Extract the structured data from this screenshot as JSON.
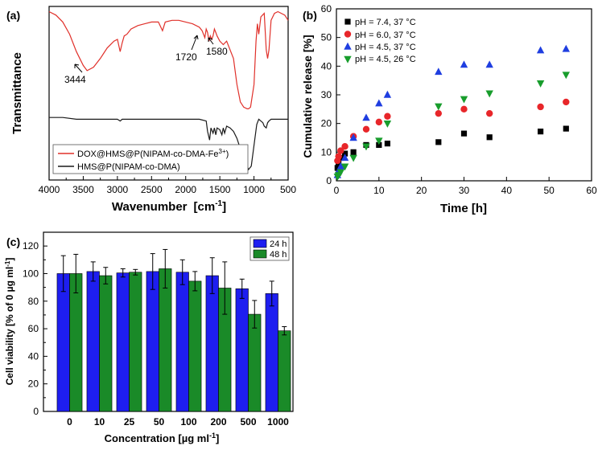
{
  "chart_data": [
    {
      "type": "line",
      "panel_label": "(a)",
      "xlabel": "Wavenumber",
      "xunit": "[cm",
      "xunit_sup": "-1",
      "xunit_close": "]",
      "ylabel": "Transmittance",
      "xlim": [
        4000,
        500
      ],
      "x_ticks": [
        "4000",
        "3500",
        "3000",
        "2500",
        "2000",
        "1500",
        "1000",
        "500"
      ],
      "annotations": [
        "3444",
        "1720",
        "1580"
      ],
      "series": [
        {
          "name": "DOX@HMS@P(NIPAM-co-DMA-Fe",
          "name_sup": "3+",
          "name_close": ")",
          "color": "#e0302a",
          "x": [
            4000,
            3900,
            3800,
            3700,
            3600,
            3500,
            3444,
            3350,
            3250,
            3150,
            3050,
            3000,
            2960,
            2930,
            2900,
            2860,
            2800,
            2700,
            2600,
            2500,
            2400,
            2340,
            2300,
            2200,
            2100,
            2000,
            1900,
            1800,
            1760,
            1720,
            1700,
            1680,
            1660,
            1640,
            1620,
            1600,
            1580,
            1560,
            1540,
            1500,
            1450,
            1400,
            1300,
            1250,
            1200,
            1150,
            1100,
            1080,
            1050,
            1000,
            970,
            950,
            930,
            900,
            850,
            820,
            800,
            780,
            750,
            700,
            650,
            600,
            550,
            500
          ],
          "y": [
            0.97,
            0.95,
            0.91,
            0.84,
            0.74,
            0.66,
            0.63,
            0.65,
            0.7,
            0.76,
            0.8,
            0.81,
            0.74,
            0.79,
            0.83,
            0.84,
            0.87,
            0.89,
            0.9,
            0.91,
            0.91,
            0.86,
            0.91,
            0.92,
            0.92,
            0.91,
            0.9,
            0.88,
            0.86,
            0.82,
            0.87,
            0.85,
            0.8,
            0.83,
            0.81,
            0.83,
            0.87,
            0.85,
            0.83,
            0.8,
            0.78,
            0.8,
            0.7,
            0.55,
            0.45,
            0.42,
            0.41,
            0.41,
            0.42,
            0.55,
            0.8,
            0.9,
            0.84,
            0.94,
            0.96,
            0.75,
            0.7,
            0.75,
            0.92,
            0.96,
            0.97,
            0.96,
            0.95,
            0.92
          ]
        },
        {
          "name": "HMS@P(NIPAM-co-DMA)",
          "color": "#1a1a1a",
          "x": [
            4000,
            3800,
            3600,
            3444,
            3300,
            3100,
            3000,
            2960,
            2930,
            2900,
            2800,
            2600,
            2400,
            2200,
            2000,
            1900,
            1800,
            1700,
            1680,
            1650,
            1630,
            1600,
            1580,
            1560,
            1540,
            1500,
            1470,
            1450,
            1430,
            1400,
            1350,
            1300,
            1250,
            1200,
            1150,
            1100,
            1080,
            1060,
            1040,
            1000,
            960,
            930,
            900,
            870,
            850,
            820,
            800,
            780,
            750,
            700,
            600,
            500
          ],
          "y": [
            0.36,
            0.36,
            0.35,
            0.35,
            0.35,
            0.35,
            0.35,
            0.34,
            0.35,
            0.35,
            0.35,
            0.35,
            0.35,
            0.35,
            0.35,
            0.35,
            0.35,
            0.34,
            0.28,
            0.23,
            0.3,
            0.27,
            0.3,
            0.26,
            0.3,
            0.29,
            0.26,
            0.3,
            0.27,
            0.31,
            0.3,
            0.28,
            0.24,
            0.18,
            0.12,
            0.08,
            0.06,
            0.07,
            0.08,
            0.2,
            0.32,
            0.35,
            0.34,
            0.33,
            0.31,
            0.3,
            0.33,
            0.34,
            0.35,
            0.35,
            0.35,
            0.35
          ]
        }
      ]
    },
    {
      "type": "scatter",
      "panel_label": "(b)",
      "xlabel": "Time  [h]",
      "ylabel": "Cumulative release  [%]",
      "xlim": [
        0,
        60
      ],
      "ylim": [
        0,
        60
      ],
      "x_ticks": [
        "0",
        "10",
        "20",
        "30",
        "40",
        "50",
        "60"
      ],
      "y_ticks": [
        "0",
        "10",
        "20",
        "30",
        "40",
        "50",
        "60"
      ],
      "series": [
        {
          "name": "pH = 7.4, 37 °C",
          "marker": "square",
          "color": "#000000",
          "x": [
            0.25,
            0.5,
            1,
            2,
            4,
            7,
            10,
            12,
            24,
            30,
            36,
            48,
            54
          ],
          "y": [
            4.5,
            6,
            8,
            9.5,
            10,
            12.5,
            12.5,
            13,
            13.5,
            16.5,
            15.2,
            17.2,
            18.2
          ]
        },
        {
          "name": "pH = 6.0, 37 °C",
          "marker": "circle",
          "color": "#e8262a",
          "x": [
            0.25,
            0.5,
            1,
            2,
            4,
            7,
            10,
            12,
            24,
            30,
            36,
            48,
            54
          ],
          "y": [
            7,
            8.5,
            10.5,
            12,
            15.5,
            18,
            20.5,
            22.5,
            23.5,
            25,
            23.5,
            25.8,
            27.5
          ]
        },
        {
          "name": "pH = 4.5, 37 °C",
          "marker": "triangle-up",
          "color": "#1f3ee0",
          "x": [
            0.25,
            0.5,
            1,
            2,
            4,
            7,
            10,
            12,
            24,
            30,
            36,
            48,
            54
          ],
          "y": [
            2,
            3.5,
            5,
            8,
            15,
            22,
            27,
            30,
            38,
            40.5,
            40.5,
            45.5,
            46
          ]
        },
        {
          "name": "pH = 4.5, 26 °C",
          "marker": "triangle-down",
          "color": "#189d2c",
          "x": [
            0.25,
            0.5,
            1,
            2,
            4,
            7,
            10,
            12,
            24,
            30,
            36,
            48,
            54
          ],
          "y": [
            1.5,
            2,
            3,
            5,
            8,
            12,
            14,
            20,
            26,
            28.5,
            30.5,
            34,
            37
          ]
        }
      ]
    },
    {
      "type": "bar",
      "panel_label": "(c)",
      "xlabel": "Concentration [µg ml",
      "xunit_sup": "-1",
      "xunit_close": "]",
      "ylabel": "Cell viability [% of 0 µg ml",
      "ylabel_sup": "-1",
      "ylabel_close": "]",
      "ylim": [
        0,
        130
      ],
      "y_ticks": [
        "0",
        "20",
        "40",
        "60",
        "80",
        "100",
        "120"
      ],
      "categories": [
        "0",
        "10",
        "25",
        "50",
        "100",
        "200",
        "500",
        "1000"
      ],
      "series": [
        {
          "name": "24 h",
          "color": "#1e1ef0",
          "values": [
            100,
            101.5,
            100.5,
            101.5,
            101,
            98.5,
            89,
            85.5
          ],
          "errors": [
            13,
            7,
            3,
            13,
            9,
            13,
            7,
            9
          ]
        },
        {
          "name": "48 h",
          "color": "#1a8a28",
          "values": [
            100,
            98.5,
            101,
            103.5,
            94.5,
            89.5,
            70.5,
            58.5
          ],
          "errors": [
            14,
            6,
            2,
            14,
            7,
            19,
            10,
            3
          ]
        }
      ]
    }
  ]
}
